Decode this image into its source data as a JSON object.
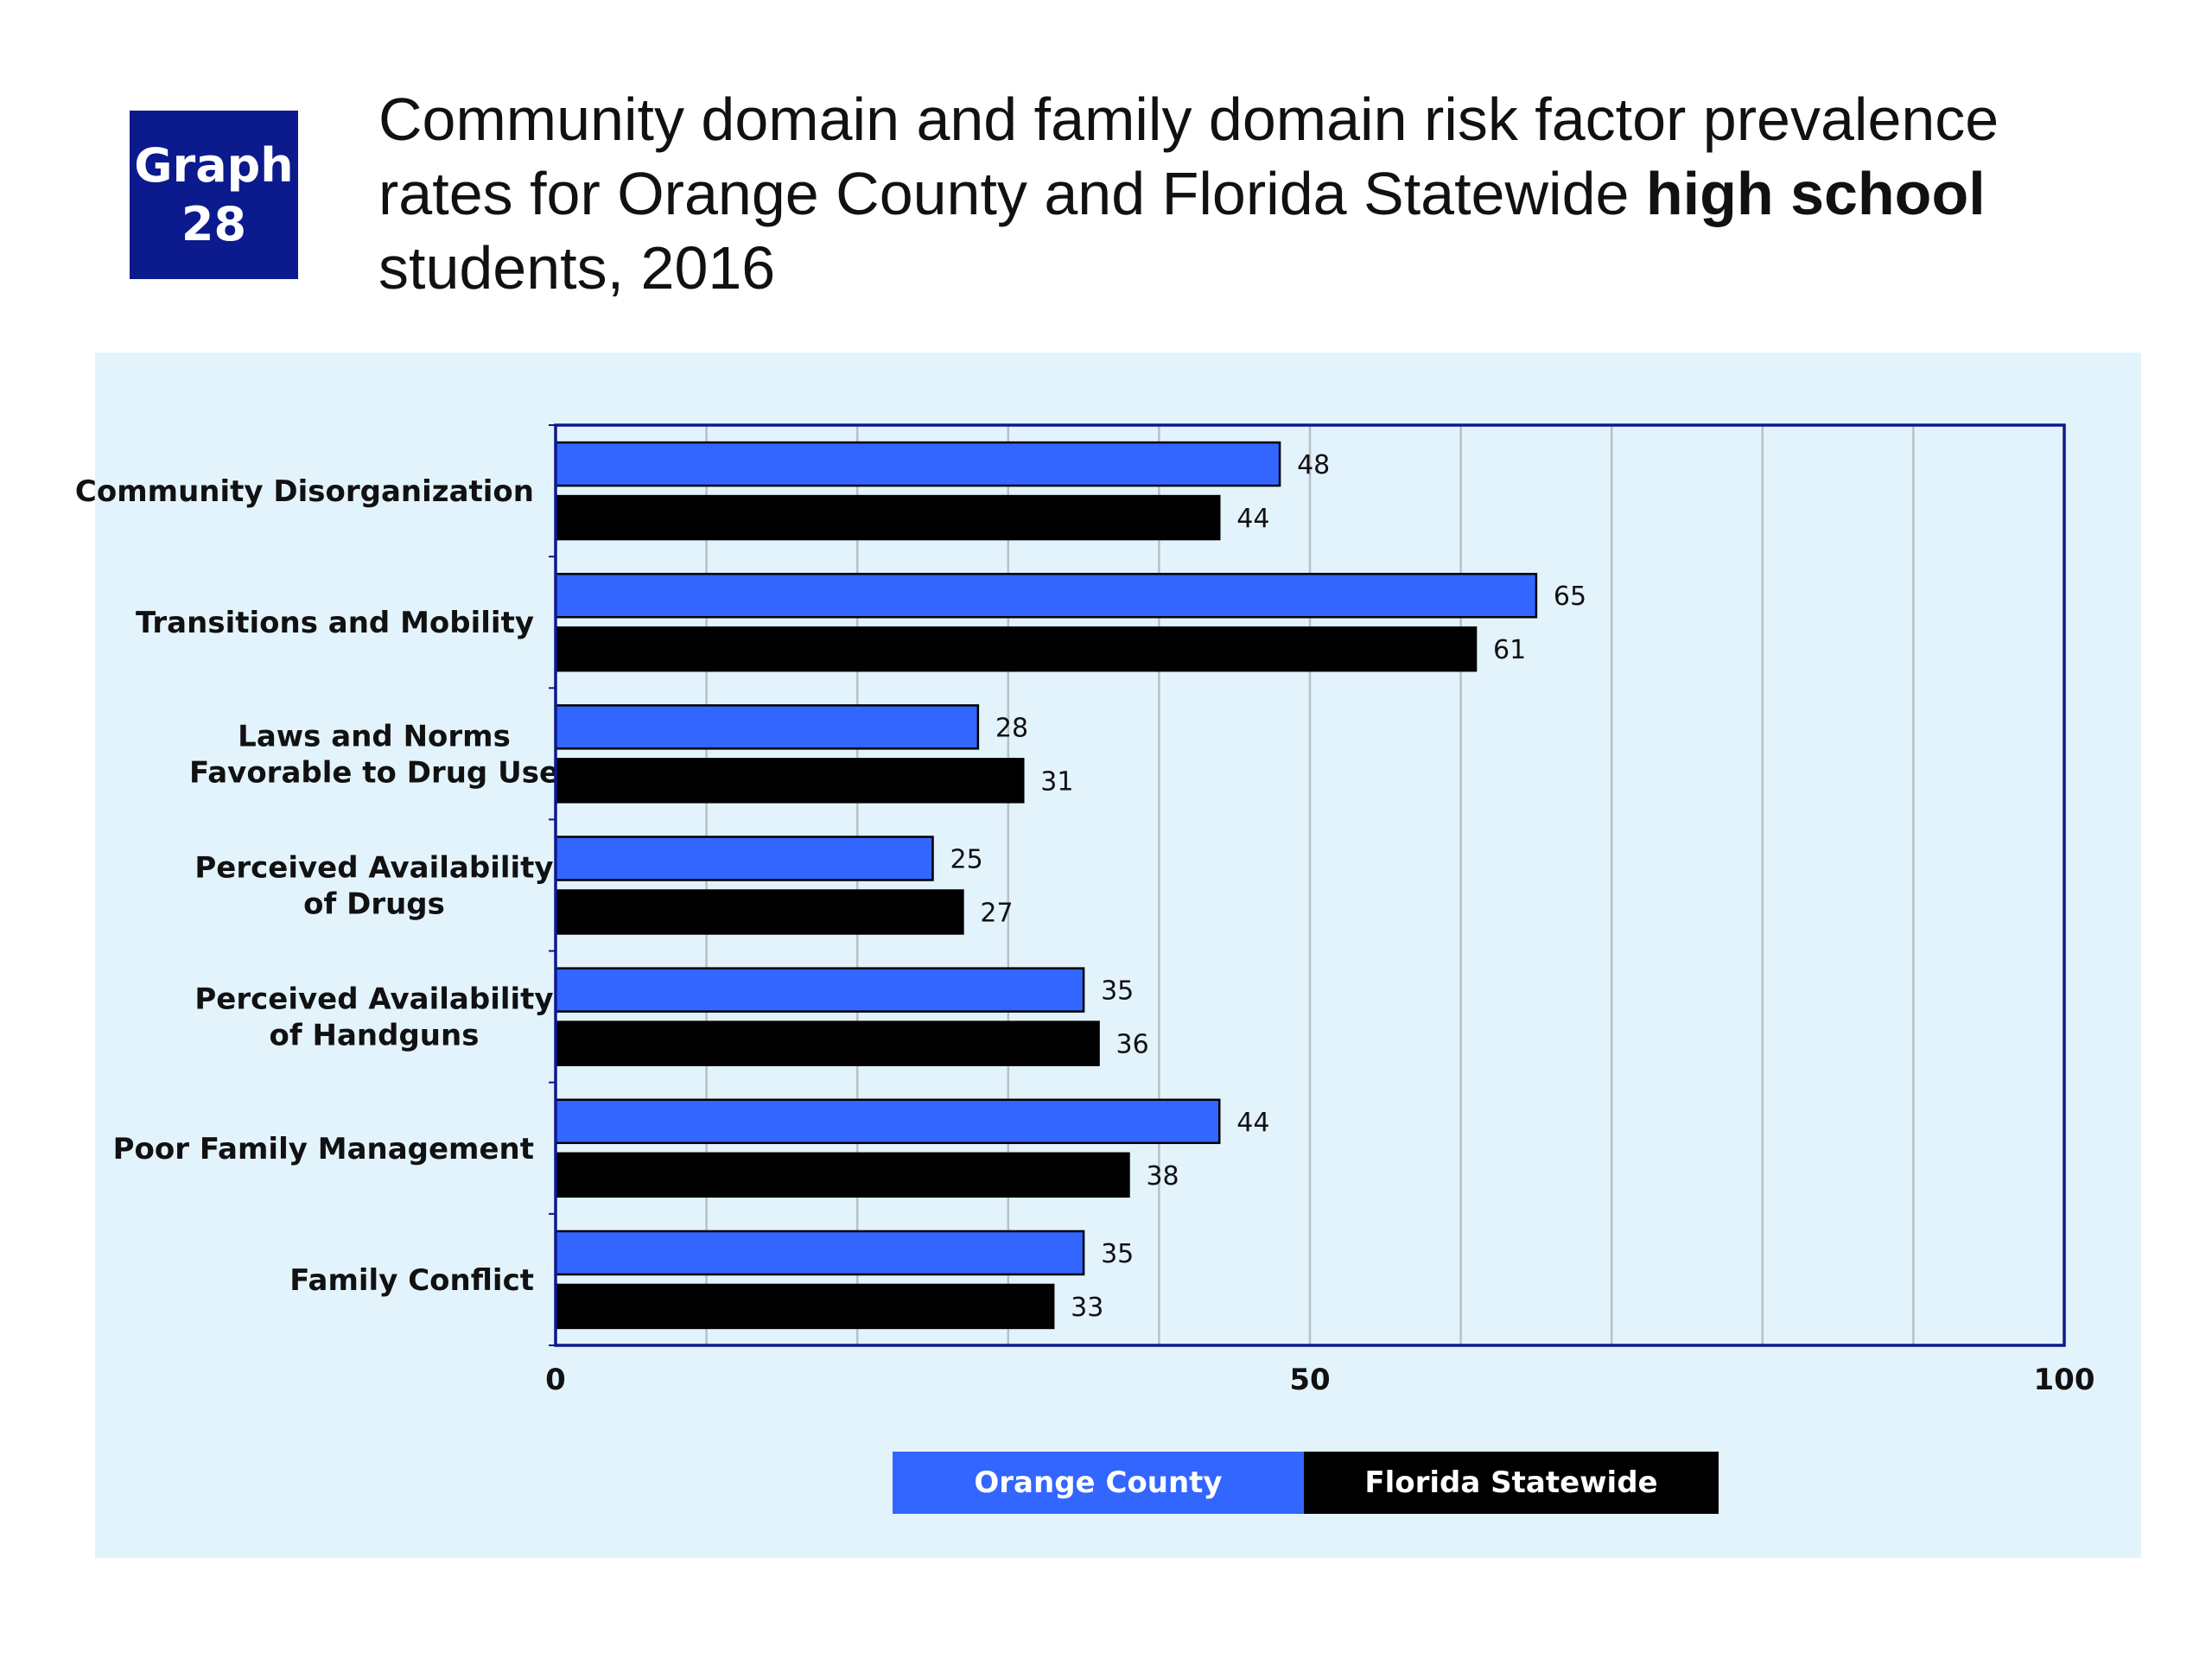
{
  "badge": {
    "line1": "Graph",
    "line2": "28"
  },
  "title": {
    "part1": "Community domain and family domain risk factor prevalence",
    "part2": "rates for Orange County and Florida Statewide ",
    "bold": "high school",
    "part3": "students, 2016"
  },
  "chart_data": {
    "type": "bar",
    "orientation": "horizontal",
    "categories": [
      [
        "Community Disorganization"
      ],
      [
        "Transitions and Mobility"
      ],
      [
        "Laws and Norms",
        "Favorable to Drug Use"
      ],
      [
        "Perceived Availability",
        "of Drugs"
      ],
      [
        "Perceived Availability",
        "of Handguns"
      ],
      [
        "Poor Family Management"
      ],
      [
        "Family Conflict"
      ]
    ],
    "series": [
      {
        "name": "Orange County",
        "values": [
          48,
          65,
          28,
          25,
          35,
          44,
          35
        ],
        "color": "#3366ff"
      },
      {
        "name": "Florida Statewide",
        "values": [
          44,
          61,
          31,
          27,
          36,
          38,
          33
        ],
        "color": "#000000"
      }
    ],
    "xlim": [
      0,
      100
    ],
    "xticks": [
      "0",
      "50",
      "100"
    ],
    "grid": true,
    "gridline_count": 10,
    "plot_border_color": "#0b1a8c",
    "data_labels": true,
    "legend_position": "bottom"
  }
}
